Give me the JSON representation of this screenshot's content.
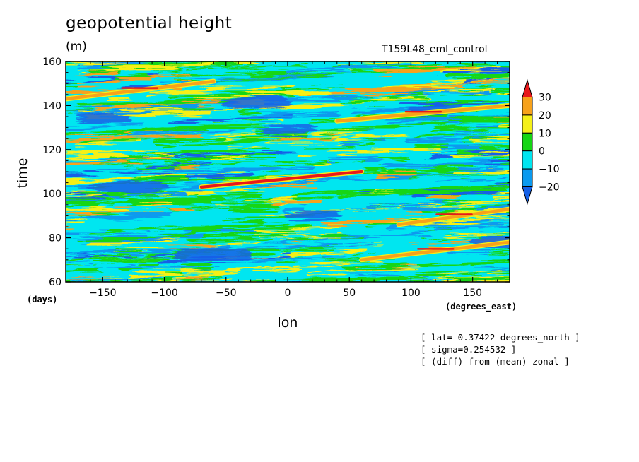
{
  "chart_data": {
    "type": "heatmap",
    "title": "geopotential height",
    "units": "(m)",
    "experiment": "T159L48_eml_control",
    "xlabel": "lon",
    "ylabel": "time",
    "x_unit": "(degrees_east)",
    "y_unit": "(days)",
    "xlim": [
      -180,
      180
    ],
    "ylim": [
      60,
      160
    ],
    "x_ticks": [
      "-150",
      "-100",
      "-50",
      "0",
      "50",
      "100",
      "150"
    ],
    "y_ticks": [
      "60",
      "80",
      "100",
      "120",
      "140",
      "160"
    ],
    "colorbar": {
      "levels": [
        "30",
        "20",
        "10",
        "0",
        "-10",
        "-20"
      ],
      "colors": [
        "#e8191b",
        "#f7a21b",
        "#f5f018",
        "#15d615",
        "#00e6f0",
        "#0a9aef",
        "#1460e6"
      ]
    },
    "features": [
      {
        "name": "eastward-propagating positive anomaly",
        "lon": [
          -70,
          60
        ],
        "time": [
          103,
          110
        ],
        "value": 30
      },
      {
        "name": "eastward-propagating positive anomaly",
        "lon": [
          40,
          180
        ],
        "time": [
          133,
          140
        ],
        "value": 25
      },
      {
        "name": "eastward-propagating positive anomaly",
        "lon": [
          -180,
          -60
        ],
        "time": [
          143,
          151
        ],
        "value": 25
      },
      {
        "name": "eastward-propagating positive anomaly",
        "lon": [
          60,
          180
        ],
        "time": [
          70,
          78
        ],
        "value": 25
      },
      {
        "name": "eastward-propagating positive anomaly",
        "lon": [
          90,
          180
        ],
        "time": [
          86,
          93
        ],
        "value": 25
      }
    ],
    "annotations": [
      "[ lat=-0.37422 degrees_north ]",
      "[ sigma=0.254532 ]",
      "[ (diff) from (mean) zonal ]"
    ]
  }
}
